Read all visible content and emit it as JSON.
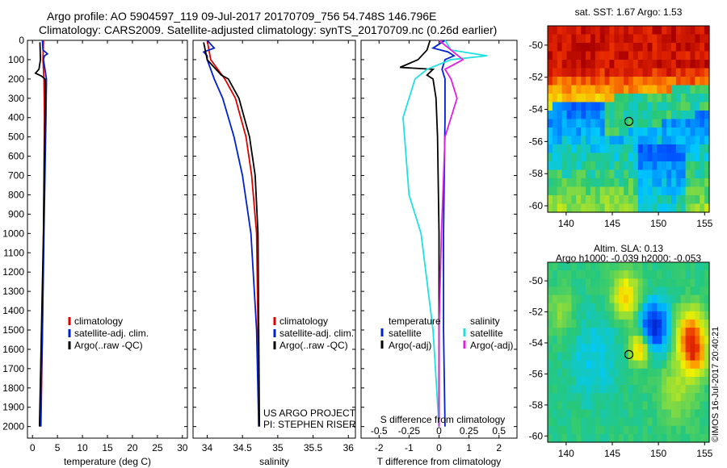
{
  "header": {
    "title_line1": "Argo profile: AO 5904597_119 09-Jul-2017 20170709_756 54.748S 146.796E",
    "title_line2": "Climatology: CARS2009. Satellite-adjusted climatology: synTS_20170709.nc (0.26d earlier)"
  },
  "credits": {
    "project": "US ARGO PROJECT",
    "pi": "PI: STEPHEN RISER",
    "stamp": "©IMOS 16-Jul-2017 20:40:21"
  },
  "colors": {
    "climatology": "#e00000",
    "satellite": "#0020d0",
    "argo": "#000000",
    "satellite_s": "#20e0e0",
    "argo_s": "#e020e0"
  },
  "chart_data": [
    {
      "type": "line",
      "id": "temperature",
      "xlabel": "temperature (deg C)",
      "ylabel": "",
      "xlim": [
        -1,
        31
      ],
      "ylim": [
        2060,
        0
      ],
      "xticks": [
        0,
        5,
        10,
        15,
        20,
        25,
        30
      ],
      "yticks": [
        0,
        100,
        200,
        300,
        400,
        500,
        600,
        700,
        800,
        900,
        1000,
        1100,
        1200,
        1300,
        1400,
        1500,
        1600,
        1700,
        1800,
        1900,
        2000
      ],
      "legend": [
        "climatology",
        "satellite-adj. clim.",
        "Argo(..raw -QC)"
      ],
      "series": [
        {
          "name": "climatology",
          "depth": [
            0,
            100,
            200,
            400,
            1000,
            1500,
            2000
          ],
          "values": [
            2.2,
            2.1,
            2.3,
            2.4,
            2.2,
            2.0,
            1.7
          ]
        },
        {
          "name": "satellite-adj. clim.",
          "depth": [
            0,
            50,
            70,
            80,
            100,
            200,
            400,
            1000,
            1500,
            2000
          ],
          "values": [
            2.0,
            2.1,
            3.0,
            2.4,
            2.2,
            2.8,
            2.7,
            2.3,
            2.0,
            1.6
          ]
        },
        {
          "name": "Argo(..raw -QC)",
          "depth": [
            10,
            100,
            150,
            170,
            185,
            200,
            250,
            400,
            1000,
            1500,
            2000
          ],
          "values": [
            1.5,
            1.6,
            1.3,
            0.6,
            1.8,
            2.5,
            2.6,
            2.5,
            2.2,
            1.8,
            1.4
          ]
        }
      ]
    },
    {
      "type": "line",
      "id": "salinity",
      "xlabel": "salinity",
      "ylabel": "",
      "xlim": [
        33.8,
        36.1
      ],
      "ylim": [
        2060,
        0
      ],
      "xticks": [
        34,
        34.5,
        35,
        35.5,
        36
      ],
      "legend": [
        "climatology",
        "satellite-adj. clim.",
        "Argo(..raw -QC)"
      ],
      "series": [
        {
          "name": "climatology",
          "depth": [
            0,
            100,
            200,
            300,
            500,
            700,
            1000,
            1500,
            2000
          ],
          "values": [
            34.0,
            34.05,
            34.25,
            34.4,
            34.55,
            34.63,
            34.7,
            34.72,
            34.73
          ]
        },
        {
          "name": "satellite-adj. clim.",
          "depth": [
            0,
            40,
            60,
            80,
            100,
            200,
            300,
            500,
            700,
            1000,
            1500,
            2000
          ],
          "values": [
            34.0,
            34.1,
            33.95,
            34.0,
            34.0,
            34.1,
            34.22,
            34.38,
            34.5,
            34.62,
            34.7,
            34.73
          ]
        },
        {
          "name": "Argo(..raw -QC)",
          "depth": [
            10,
            100,
            180,
            200,
            300,
            500,
            700,
            1000,
            1500,
            2000
          ],
          "values": [
            33.95,
            34.0,
            34.2,
            34.3,
            34.45,
            34.6,
            34.68,
            34.72,
            34.73,
            34.74
          ]
        }
      ]
    },
    {
      "type": "line",
      "id": "difference",
      "xlabel": "T difference from climatology",
      "x2label": "S difference from climatology",
      "xlim": [
        -2.6,
        2.6
      ],
      "ylim": [
        2060,
        0
      ],
      "xticks": [
        -2,
        -1,
        0,
        1,
        2
      ],
      "x2ticks": [
        -0.5,
        -0.25,
        0,
        0.25,
        0.5
      ],
      "x2tick_labels": [
        "-0.5",
        "-0.25",
        "0",
        "0.25",
        "0.5"
      ],
      "legend_groups": {
        "temperature": [
          "satellite",
          "Argo(-adj)"
        ],
        "salinity": [
          "satellite",
          "Argo(-adj)"
        ]
      },
      "series": [
        {
          "name": "T satellite",
          "group": "temperature",
          "depth": [
            0,
            40,
            60,
            80,
            100,
            150,
            200,
            400,
            1000,
            1500,
            2000
          ],
          "values": [
            0.2,
            -0.2,
            0.3,
            0.5,
            0.2,
            0.1,
            0.2,
            0.2,
            0.15,
            0.15,
            0.2
          ]
        },
        {
          "name": "T Argo(-adj)",
          "group": "temperature",
          "depth": [
            0,
            50,
            100,
            140,
            150,
            180,
            200,
            300,
            500,
            1000,
            1500,
            2000
          ],
          "values": [
            -0.3,
            -0.4,
            -0.7,
            -1.3,
            -0.2,
            -0.4,
            -0.2,
            -0.1,
            -0.05,
            0.0,
            0.0,
            0.0
          ]
        },
        {
          "name": "S satellite",
          "group": "salinity",
          "depth": [
            0,
            50,
            80,
            100,
            150,
            200,
            400,
            800,
            1000,
            1500,
            2000
          ],
          "values": [
            0.05,
            0.1,
            0.4,
            0.1,
            -0.1,
            -0.2,
            -0.3,
            -0.25,
            -0.15,
            -0.05,
            0.0
          ]
        },
        {
          "name": "S Argo(-adj)",
          "group": "salinity",
          "depth": [
            0,
            100,
            150,
            200,
            300,
            400,
            500,
            1000,
            1500,
            2000
          ],
          "values": [
            0.0,
            0.2,
            0.05,
            0.1,
            0.15,
            0.1,
            0.05,
            0.02,
            0.0,
            0.0
          ]
        }
      ]
    },
    {
      "type": "heatmap",
      "id": "sst_map",
      "title": "sat. SST: 1.67  Argo: 1.53",
      "xlim": [
        138,
        155.5
      ],
      "ylim": [
        -60.4,
        -48.8
      ],
      "xticks": [
        140,
        145,
        150,
        155
      ],
      "yticks": [
        -50,
        -52,
        -54,
        -56,
        -58,
        -60
      ],
      "marker": {
        "lon": 146.796,
        "lat": -54.748
      }
    },
    {
      "type": "heatmap",
      "id": "sla_map",
      "title": "Altim. SLA: 0.13",
      "subtitle": "Argo h1000: -0.039  h2000: -0.053",
      "xlim": [
        138,
        155.5
      ],
      "ylim": [
        -60.4,
        -48.8
      ],
      "xticks": [
        140,
        145,
        150,
        155
      ],
      "yticks": [
        -50,
        -52,
        -54,
        -56,
        -58,
        -60
      ],
      "marker": {
        "lon": 146.796,
        "lat": -54.748
      }
    }
  ]
}
